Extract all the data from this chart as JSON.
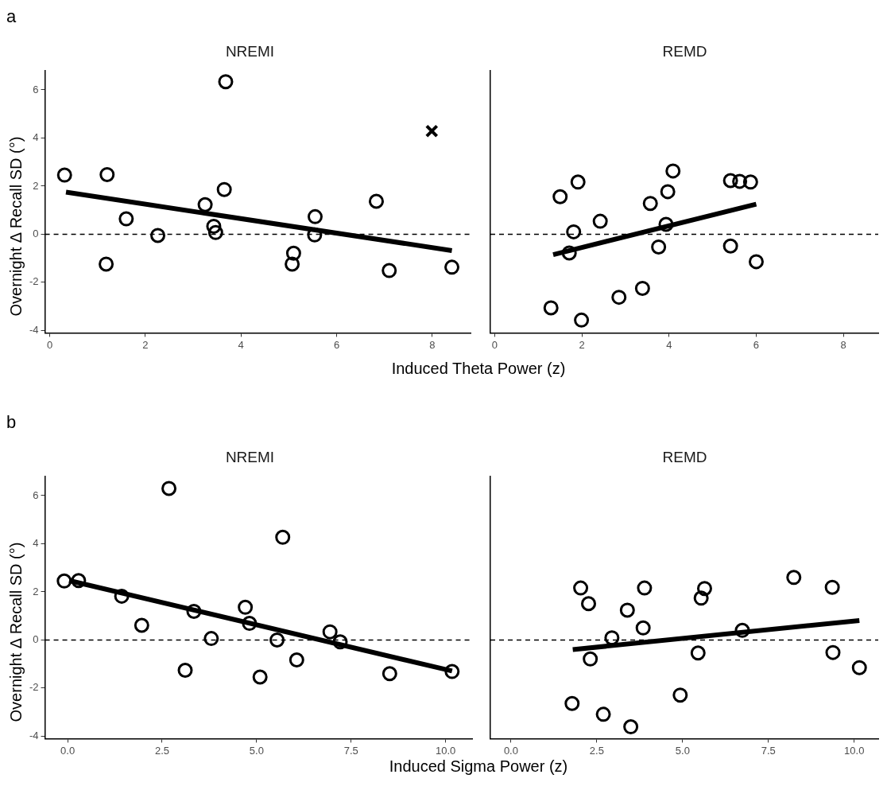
{
  "chart_data": [
    {
      "type": "scatter",
      "title": "NREMI",
      "xlabel": "Induced Theta Power (z)",
      "ylabel": "Overnight Δ Recall SD (°)",
      "annotations": [
        "a"
      ],
      "xlim": [
        -0.1,
        8.8
      ],
      "xticks": [
        0,
        2,
        4,
        6,
        8
      ],
      "ylim": [
        -4.1,
        6.8
      ],
      "yticks": [
        -4,
        -2,
        0,
        2,
        4,
        6
      ],
      "ref_lines": [
        {
          "axis": "y",
          "value": 0,
          "line_style": "dashed",
          "color": "#000000"
        }
      ],
      "series": [
        {
          "color": "#000000",
          "marker": "circle",
          "x": [
            0.31,
            1.2,
            1.6,
            2.26,
            1.18,
            3.25,
            3.65,
            3.68,
            3.43,
            3.47,
            5.55,
            5.54,
            5.1,
            5.07,
            6.83,
            7.1,
            8.41
          ],
          "values": [
            2.46,
            2.48,
            0.64,
            -0.05,
            -1.24,
            1.23,
            1.86,
            6.34,
            0.33,
            0.07,
            0.73,
            -0.03,
            -0.79,
            -1.24,
            1.37,
            -1.51,
            -1.37
          ]
        },
        {
          "color": "#000000",
          "marker": "cross",
          "x": [
            7.99
          ],
          "values": [
            4.29
          ]
        },
        {
          "type": "line",
          "color": "#000000",
          "marker": "none",
          "x": [
            0.34,
            8.41
          ],
          "values": [
            1.75,
            -0.68
          ]
        }
      ]
    },
    {
      "type": "scatter",
      "title": "REMD",
      "tick_labels": "x",
      "xlim": [
        -0.1,
        8.8
      ],
      "xticks": [
        0,
        2,
        4,
        6,
        8
      ],
      "ylim": [
        -4.1,
        6.8
      ],
      "yticks": [
        -4,
        -2,
        0,
        2,
        4,
        6
      ],
      "ref_lines": [
        {
          "axis": "y",
          "value": 0,
          "line_style": "dashed",
          "color": "#000000"
        }
      ],
      "series": [
        {
          "color": "#000000",
          "marker": "circle",
          "x": [
            1.5,
            1.91,
            1.81,
            1.71,
            2.42,
            1.29,
            1.99,
            2.85,
            3.39,
            3.57,
            4.09,
            3.97,
            3.93,
            3.76,
            5.41,
            5.62,
            5.87,
            5.41,
            6.0
          ],
          "values": [
            1.56,
            2.17,
            0.1,
            -0.78,
            0.54,
            -3.06,
            -3.57,
            -2.62,
            -2.25,
            1.28,
            2.63,
            1.77,
            0.41,
            -0.53,
            2.23,
            2.2,
            2.17,
            -0.49,
            -1.14
          ]
        },
        {
          "type": "line",
          "color": "#000000",
          "marker": "none",
          "x": [
            1.34,
            6.0
          ],
          "values": [
            -0.85,
            1.25
          ]
        }
      ]
    },
    {
      "type": "scatter",
      "title": "NREMI",
      "xlabel": "Induced Sigma Power (z)",
      "ylabel": "Overnight Δ Recall SD (°)",
      "annotations": [
        "b"
      ],
      "xlim": [
        -0.6,
        10.7
      ],
      "xticks": [
        {
          "value": 0,
          "label": "0.0"
        },
        2.5,
        {
          "value": 5,
          "label": "5.0"
        },
        7.5,
        {
          "value": 10,
          "label": "10.0"
        }
      ],
      "ylim": [
        -4.1,
        6.8
      ],
      "yticks": [
        -4,
        -2,
        0,
        2,
        4,
        6
      ],
      "ref_lines": [
        {
          "axis": "y",
          "value": 0,
          "line_style": "dashed",
          "color": "#000000"
        }
      ],
      "series": [
        {
          "color": "#000000",
          "marker": "circle",
          "x": [
            -0.09,
            0.29,
            1.43,
            1.96,
            2.68,
            3.11,
            3.34,
            3.8,
            4.7,
            4.81,
            5.69,
            5.09,
            5.54,
            6.06,
            6.94,
            7.21,
            8.52,
            10.17
          ],
          "values": [
            2.45,
            2.47,
            1.82,
            0.61,
            6.3,
            -1.26,
            1.19,
            0.06,
            1.36,
            0.69,
            4.27,
            -1.54,
            0.0,
            -0.83,
            0.34,
            -0.08,
            -1.4,
            -1.31
          ]
        },
        {
          "type": "line",
          "color": "#000000",
          "marker": "none",
          "x": [
            0.04,
            10.17
          ],
          "values": [
            2.47,
            -1.29
          ]
        }
      ]
    },
    {
      "type": "scatter",
      "title": "REMD",
      "tick_labels": "x",
      "xlim": [
        -0.6,
        10.7
      ],
      "xticks": [
        {
          "value": 0,
          "label": "0.0"
        },
        2.5,
        {
          "value": 5,
          "label": "5.0"
        },
        7.5,
        {
          "value": 10,
          "label": "10.0"
        }
      ],
      "ylim": [
        -4.1,
        6.8
      ],
      "yticks": [
        -4,
        -2,
        0,
        2,
        4,
        6
      ],
      "ref_lines": [
        {
          "axis": "y",
          "value": 0,
          "line_style": "dashed",
          "color": "#000000"
        }
      ],
      "series": [
        {
          "color": "#000000",
          "marker": "circle",
          "x": [
            2.03,
            2.26,
            3.39,
            3.89,
            3.85,
            2.94,
            2.31,
            1.78,
            2.69,
            3.49,
            4.93,
            5.64,
            5.54,
            5.45,
            6.74,
            8.24,
            9.36,
            9.38,
            10.15
          ],
          "values": [
            2.16,
            1.51,
            1.24,
            2.16,
            0.5,
            0.09,
            -0.79,
            -2.64,
            -3.09,
            -3.61,
            -2.29,
            2.14,
            1.74,
            -0.54,
            0.4,
            2.6,
            2.19,
            -0.52,
            -1.15
          ]
        },
        {
          "type": "line",
          "color": "#000000",
          "marker": "none",
          "x": [
            1.8,
            10.15
          ],
          "values": [
            -0.4,
            0.81
          ]
        }
      ]
    }
  ]
}
